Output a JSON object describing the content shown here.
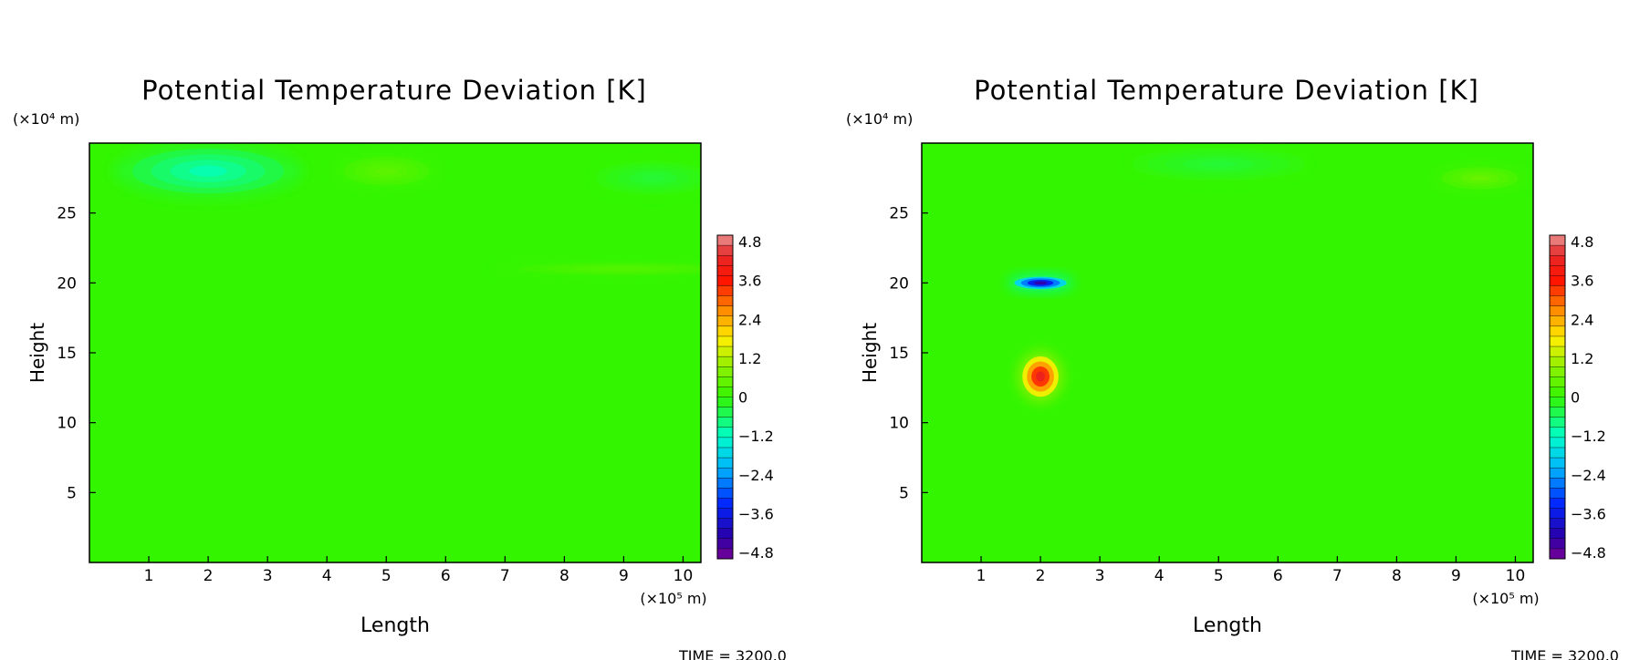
{
  "chart_data": [
    {
      "type": "heatmap",
      "title": "Potential Temperature Deviation [K]",
      "xlabel": "Length",
      "ylabel": "Height",
      "x_unit": "(×10⁵ m)",
      "y_unit": "(×10⁴ m)",
      "xlim": [
        0,
        10.3
      ],
      "ylim": [
        0,
        30
      ],
      "x_ticks": [
        1,
        2,
        3,
        4,
        5,
        6,
        7,
        8,
        9,
        10
      ],
      "y_ticks": [
        5,
        10,
        15,
        20,
        25
      ],
      "colorbar_labels": [
        "4.8",
        "3.6",
        "2.4",
        "1.2",
        "0",
        "−1.2",
        "−2.4",
        "−3.6",
        "−4.8"
      ],
      "colorbar_range": [
        -4.8,
        4.8
      ],
      "footer": "TIME = 3200.0",
      "features": [
        {
          "x": 2.0,
          "y": 28.0,
          "rx": 1.6,
          "ry": 2.0,
          "value": -1.0
        },
        {
          "x": 5.0,
          "y": 28.0,
          "rx": 0.9,
          "ry": 1.3,
          "value": 0.4
        },
        {
          "x": 9.0,
          "y": 21.0,
          "rx": 2.2,
          "ry": 0.6,
          "value": 0.3
        },
        {
          "x": 9.5,
          "y": 27.5,
          "rx": 1.0,
          "ry": 1.2,
          "value": -0.3
        }
      ]
    },
    {
      "type": "heatmap",
      "title": "Potential Temperature Deviation [K]",
      "xlabel": "Length",
      "ylabel": "Height",
      "x_unit": "(×10⁵ m)",
      "y_unit": "(×10⁴ m)",
      "xlim": [
        0,
        10.3
      ],
      "ylim": [
        0,
        30
      ],
      "x_ticks": [
        1,
        2,
        3,
        4,
        5,
        6,
        7,
        8,
        9,
        10
      ],
      "y_ticks": [
        5,
        10,
        15,
        20,
        25
      ],
      "colorbar_labels": [
        "4.8",
        "3.6",
        "2.4",
        "1.2",
        "0",
        "−1.2",
        "−2.4",
        "−3.6",
        "−4.8"
      ],
      "colorbar_range": [
        -4.8,
        4.8
      ],
      "footer": "TIME = 3200.0",
      "features": [
        {
          "x": 2.0,
          "y": 20.0,
          "rx": 0.55,
          "ry": 0.55,
          "value": -4.2
        },
        {
          "x": 2.0,
          "y": 13.3,
          "rx": 0.38,
          "ry": 1.8,
          "value": 4.0
        },
        {
          "x": 9.4,
          "y": 27.5,
          "rx": 0.8,
          "ry": 1.0,
          "value": 0.5
        },
        {
          "x": 5.0,
          "y": 28.5,
          "rx": 1.5,
          "ry": 1.2,
          "value": -0.3
        }
      ]
    }
  ]
}
